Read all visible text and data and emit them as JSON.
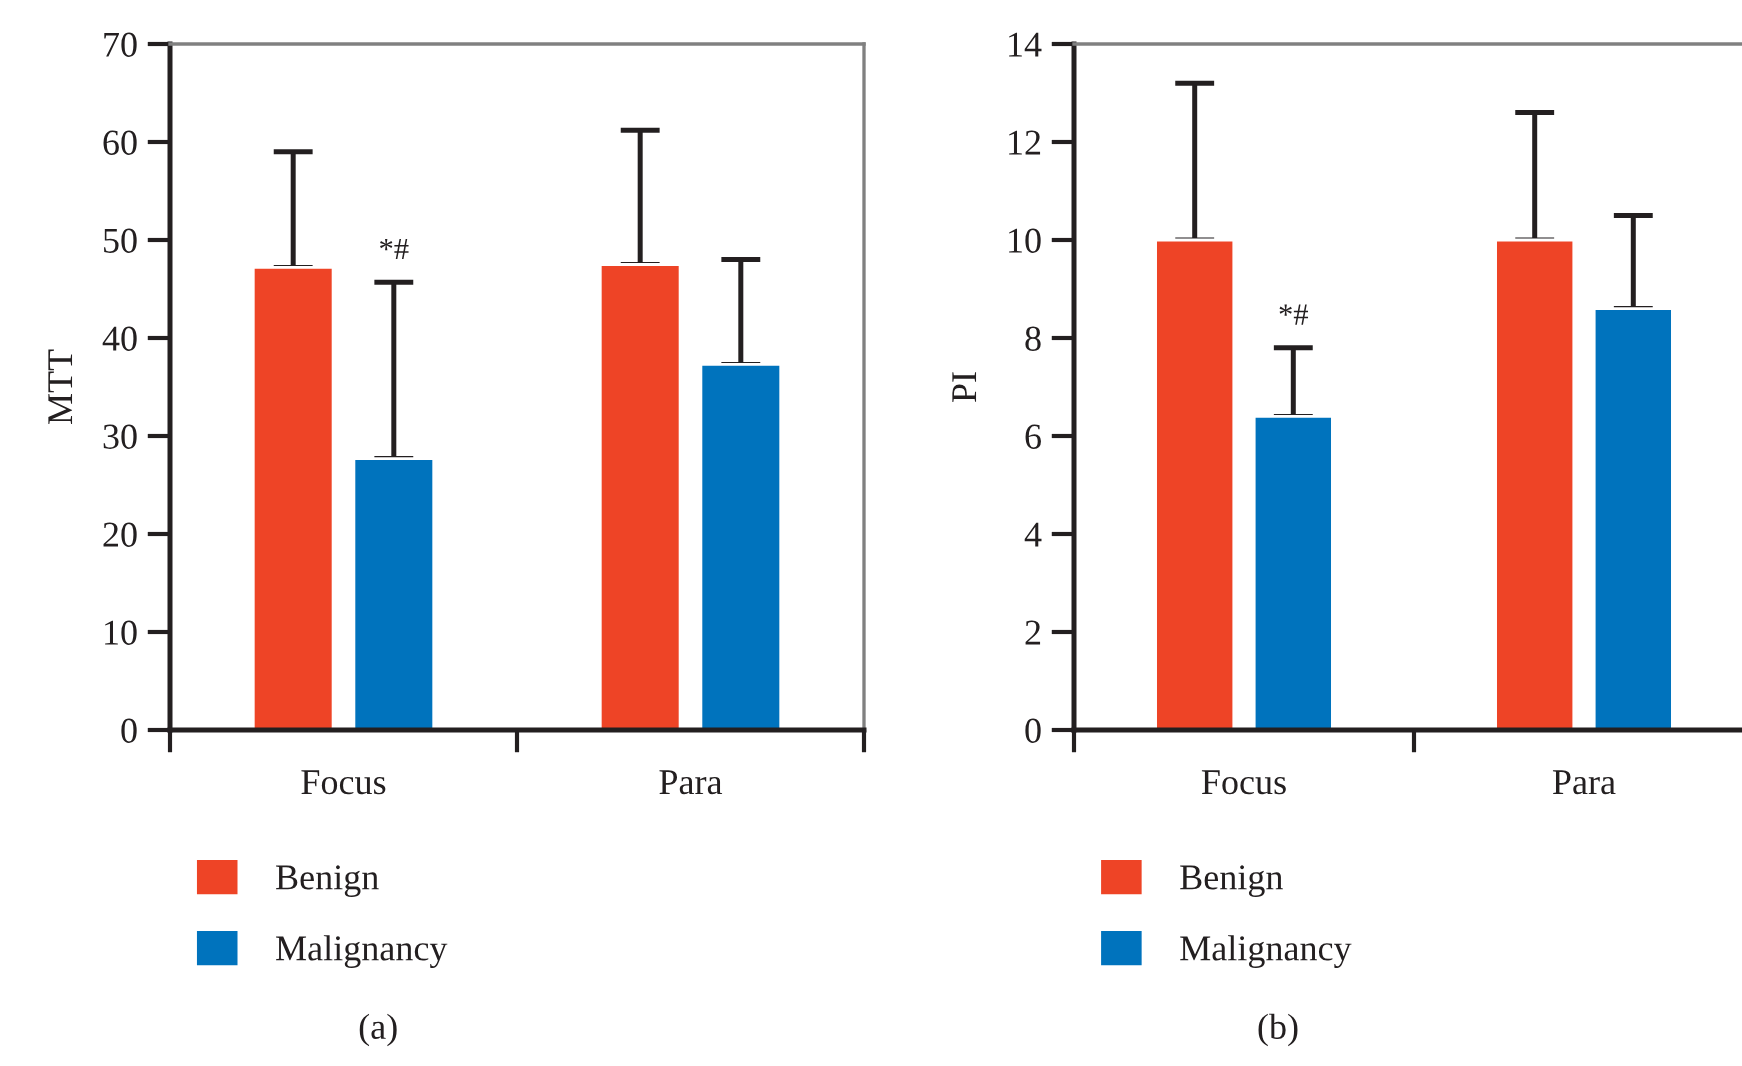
{
  "chart_data": [
    {
      "type": "bar",
      "ylabel": "MTT",
      "categories": [
        "Focus",
        "Para"
      ],
      "series": [
        {
          "name": "Benign",
          "color": "#ee4426",
          "values": [
            47.2,
            47.5
          ],
          "errors": [
            [
              47.2,
              59
            ],
            [
              47.5,
              61.2
            ]
          ]
        },
        {
          "name": "Malignancy",
          "color": "#0073bd",
          "values": [
            27.7,
            37.3
          ],
          "errors": [
            [
              27.7,
              45.7
            ],
            [
              37.3,
              48
            ]
          ]
        }
      ],
      "ylim": [
        0,
        70
      ],
      "yticks": [
        0,
        10,
        20,
        30,
        40,
        50,
        60,
        70
      ],
      "grid": false,
      "legend": "bottom left",
      "annotations": [
        "*#",
        "(a)"
      ]
    },
    {
      "type": "bar",
      "ylabel": "PI",
      "categories": [
        "Focus",
        "Para"
      ],
      "series": [
        {
          "name": "Benign",
          "color": "#ee4426",
          "values": [
            10.0,
            10.0
          ],
          "errors": [
            [
              10.0,
              13.2
            ],
            [
              10.0,
              12.6
            ]
          ]
        },
        {
          "name": "Malignancy",
          "color": "#0073bd",
          "values": [
            6.4,
            8.6
          ],
          "errors": [
            [
              6.4,
              7.8
            ],
            [
              8.6,
              10.5
            ]
          ]
        }
      ],
      "ylim": [
        0,
        14
      ],
      "yticks": [
        0,
        2,
        4,
        6,
        8,
        10,
        12,
        14
      ],
      "grid": false,
      "legend": "bottom left",
      "annotations": [
        "*#",
        "(b)"
      ]
    }
  ]
}
